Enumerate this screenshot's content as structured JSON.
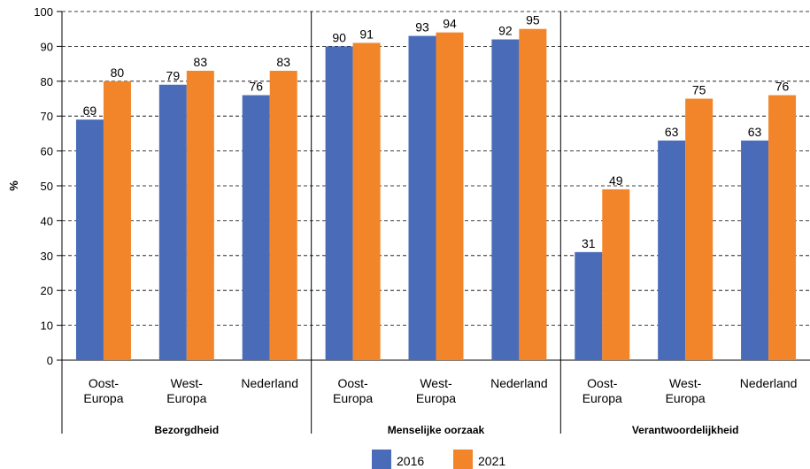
{
  "chart_data": {
    "type": "bar",
    "ylabel": "%",
    "ylim": [
      0,
      100
    ],
    "yticks": [
      0,
      10,
      20,
      30,
      40,
      50,
      60,
      70,
      80,
      90,
      100
    ],
    "grid": "horizontal dashed",
    "legend_position": "bottom",
    "groups": [
      {
        "label": "Bezorgdheid",
        "categories": [
          [
            "Oost-",
            "Europa"
          ],
          [
            "West-",
            "Europa"
          ],
          [
            "Nederland"
          ]
        ],
        "values_2016": [
          69,
          79,
          76
        ],
        "values_2021": [
          80,
          83,
          83
        ]
      },
      {
        "label": "Menselijke oorzaak",
        "categories": [
          [
            "Oost-",
            "Europa"
          ],
          [
            "West-",
            "Europa"
          ],
          [
            "Nederland"
          ]
        ],
        "values_2016": [
          90,
          93,
          92
        ],
        "values_2021": [
          91,
          94,
          95
        ]
      },
      {
        "label": "Verantwoordelijkheid",
        "categories": [
          [
            "Oost-",
            "Europa"
          ],
          [
            "West-",
            "Europa"
          ],
          [
            "Nederland"
          ]
        ],
        "values_2016": [
          31,
          63,
          63
        ],
        "values_2021": [
          49,
          75,
          76
        ]
      }
    ],
    "series": [
      {
        "name": "2016",
        "color": "#4a6cb8"
      },
      {
        "name": "2021",
        "color": "#f2852a"
      }
    ]
  }
}
